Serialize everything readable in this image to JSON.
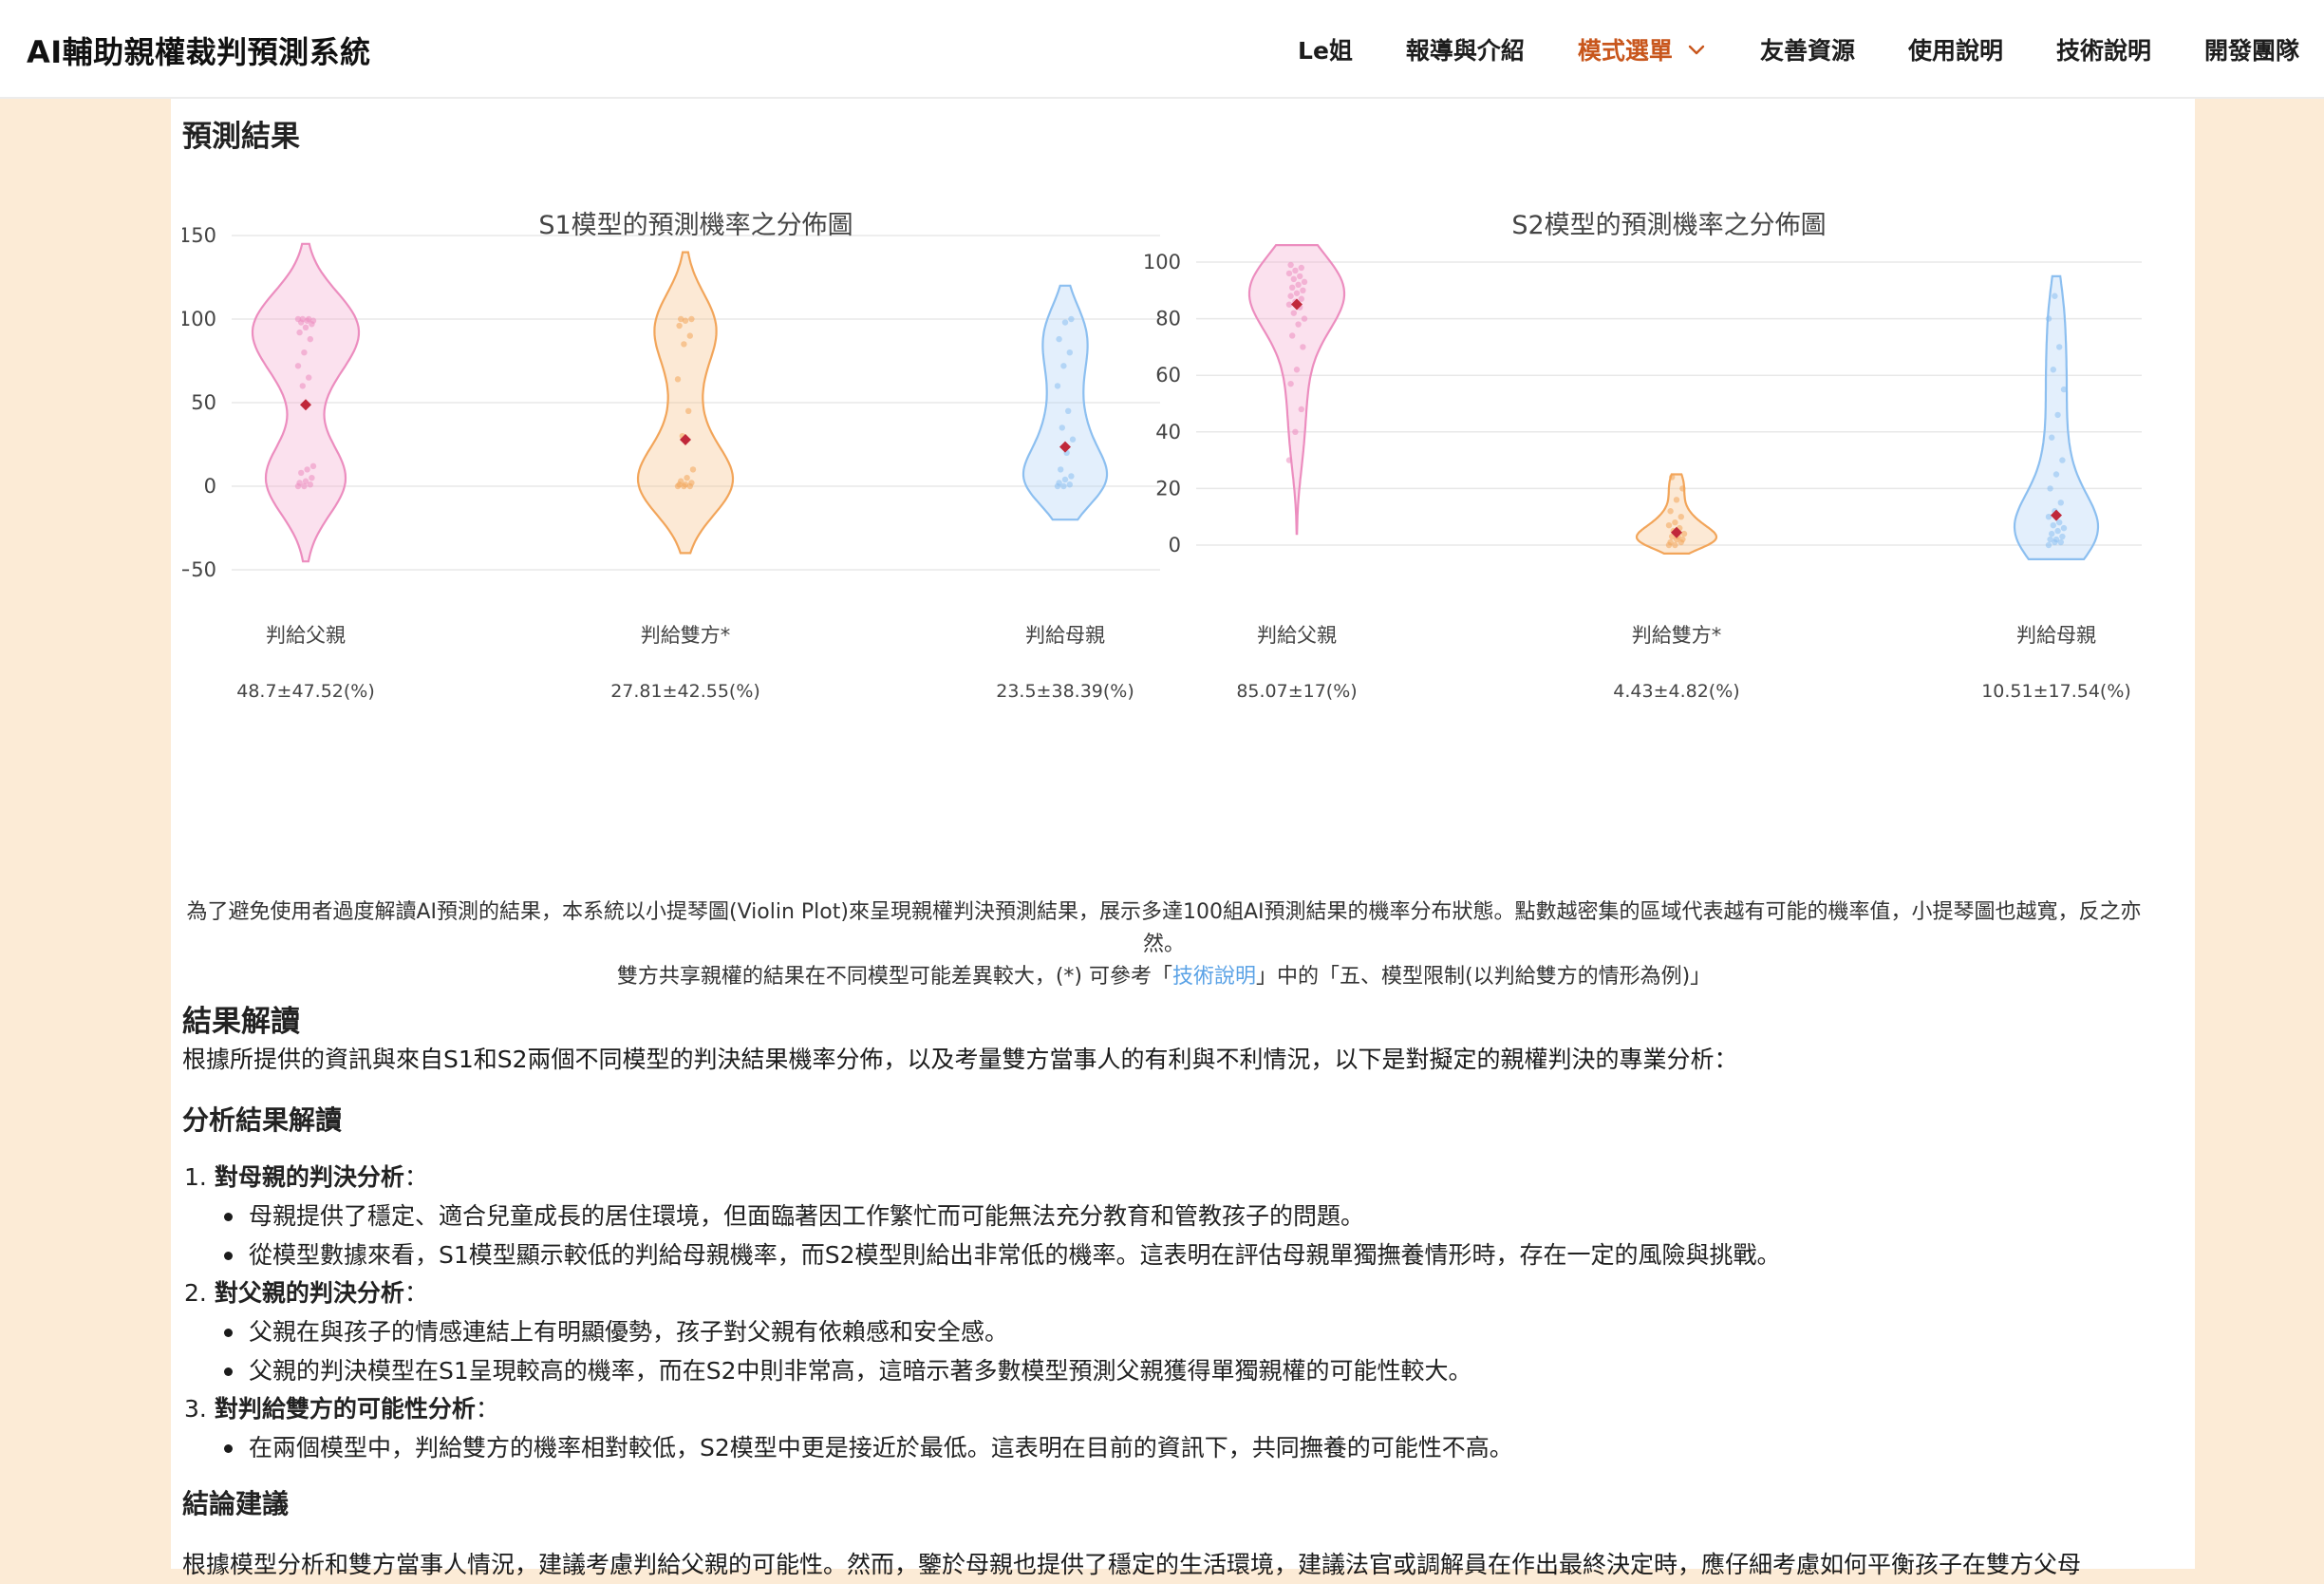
{
  "app": {
    "title": "AI輔助親權裁判預測系統"
  },
  "nav": {
    "items": [
      {
        "label": "Le姐"
      },
      {
        "label": "報導與介紹"
      },
      {
        "label": "模式選單"
      },
      {
        "label": "友善資源"
      },
      {
        "label": "使用說明"
      },
      {
        "label": "技術說明"
      },
      {
        "label": "開發團隊"
      }
    ],
    "active_index": 2
  },
  "colors": {
    "accent": "#c8561c",
    "father": "#f4a8cf",
    "both": "#f7bf86",
    "mother": "#aed2f7",
    "mean_marker": "#c0283a",
    "link": "#5aa2e6"
  },
  "main": {
    "prediction_title": "預測結果",
    "caption": {
      "line1": "為了避免使用者過度解讀AI預測的結果，本系統以小提琴圖(Violin Plot)來呈現親權判決預測結果，展示多達100組AI預測結果的機率分布狀態。點數越密集的區域代表越有可能的機率值，小提琴圖也越寬，反之亦然。",
      "line2_pre": "雙方共享親權的結果在不同模型可能差異較大，(*) 可參考「",
      "line2_link": "技術說明",
      "line2_post": "」中的「五、模型限制(以判給雙方的情形為例)」"
    },
    "interpretation": {
      "title": "結果解讀",
      "intro": "根據所提供的資訊與來自S1和S2兩個不同模型的判決結果機率分佈，以及考量雙方當事人的有利與不利情況，以下是對擬定的親權判決的專業分析：",
      "analysis_title": "分析結果解讀",
      "items": [
        {
          "num": "1.",
          "title": "對母親的判決分析",
          "colon": "：",
          "bullets": [
            "母親提供了穩定、適合兒童成長的居住環境，但面臨著因工作繁忙而可能無法充分教育和管教孩子的問題。",
            "從模型數據來看，S1模型顯示較低的判給母親機率，而S2模型則給出非常低的機率。這表明在評估母親單獨撫養情形時，存在一定的風險與挑戰。"
          ]
        },
        {
          "num": "2.",
          "title": "對父親的判決分析",
          "colon": "：",
          "bullets": [
            "父親在與孩子的情感連結上有明顯優勢，孩子對父親有依賴感和安全感。",
            "父親的判決模型在S1呈現較高的機率，而在S2中則非常高，這暗示著多數模型預測父親獲得單獨親權的可能性較大。"
          ]
        },
        {
          "num": "3.",
          "title": "對判給雙方的可能性分析",
          "colon": "：",
          "bullets": [
            "在兩個模型中，判給雙方的機率相對較低，S2模型中更是接近於最低。這表明在目前的資訊下，共同撫養的可能性不高。"
          ]
        }
      ],
      "conclusion_title": "結論建議",
      "conclusion_text": "根據模型分析和雙方當事人情況，建議考慮判給父親的可能性。然而，鑒於母親也提供了穩定的生活環境，建議法官或調解員在作出最終決定時，應仔細考慮如何平衡孩子在雙方父母"
    }
  },
  "chart_data": [
    {
      "type": "violin",
      "title": "S1模型的預測機率之分佈圖",
      "ylim": [
        -50,
        150
      ],
      "yticks": [
        -50,
        0,
        50,
        100,
        150
      ],
      "ytick_labels": [
        "−50",
        "0",
        "50",
        "100",
        "150"
      ],
      "grid": true,
      "series": [
        {
          "category": "判給父親",
          "stat_label": "48.7±47.52(%)",
          "mean": 48.7,
          "std": 47.52,
          "range": [
            -45,
            145
          ],
          "points": [
            0,
            0,
            1,
            2,
            3,
            5,
            8,
            10,
            12,
            60,
            65,
            72,
            80,
            88,
            92,
            95,
            97,
            98,
            99,
            99,
            100,
            100,
            100
          ]
        },
        {
          "category": "判給雙方*",
          "stat_label": "27.81±42.55(%)",
          "mean": 27.81,
          "std": 42.55,
          "range": [
            -40,
            140
          ],
          "points": [
            0,
            0,
            0,
            1,
            1,
            2,
            3,
            5,
            10,
            30,
            45,
            64,
            85,
            90,
            96,
            99,
            100,
            100
          ]
        },
        {
          "category": "判給母親",
          "stat_label": "23.5±38.39(%)",
          "mean": 23.5,
          "std": 38.39,
          "range": [
            -20,
            120
          ],
          "points": [
            0,
            0,
            1,
            2,
            4,
            6,
            10,
            20,
            28,
            35,
            45,
            60,
            72,
            80,
            88,
            98,
            100
          ]
        }
      ]
    },
    {
      "type": "violin",
      "title": "S2模型的預測機率之分佈圖",
      "ylim": [
        -10,
        105
      ],
      "yticks": [
        0,
        20,
        40,
        60,
        80,
        100
      ],
      "ytick_labels": [
        "0",
        "20",
        "40",
        "60",
        "80",
        "100"
      ],
      "grid": true,
      "series": [
        {
          "category": "判給父親",
          "stat_label": "85.07±17(%)",
          "mean": 85.07,
          "std": 17,
          "range": [
            4,
            106
          ],
          "points": [
            30,
            40,
            48,
            57,
            62,
            70,
            74,
            78,
            80,
            82,
            84,
            85,
            86,
            87,
            88,
            89,
            90,
            91,
            92,
            93,
            94,
            95,
            96,
            97,
            98,
            99
          ]
        },
        {
          "category": "判給雙方*",
          "stat_label": "4.43±4.82(%)",
          "mean": 4.43,
          "std": 4.82,
          "range": [
            -3,
            25
          ],
          "points": [
            0,
            0,
            1,
            1,
            2,
            2,
            3,
            3,
            4,
            5,
            6,
            7,
            8,
            10,
            12,
            16,
            20,
            24
          ]
        },
        {
          "category": "判給母親",
          "stat_label": "10.51±17.54(%)",
          "mean": 10.51,
          "std": 17.54,
          "range": [
            -5,
            95
          ],
          "points": [
            0,
            1,
            1,
            2,
            2,
            3,
            4,
            5,
            6,
            7,
            8,
            10,
            12,
            15,
            20,
            25,
            30,
            38,
            46,
            55,
            62,
            70,
            80,
            88
          ]
        }
      ]
    }
  ]
}
